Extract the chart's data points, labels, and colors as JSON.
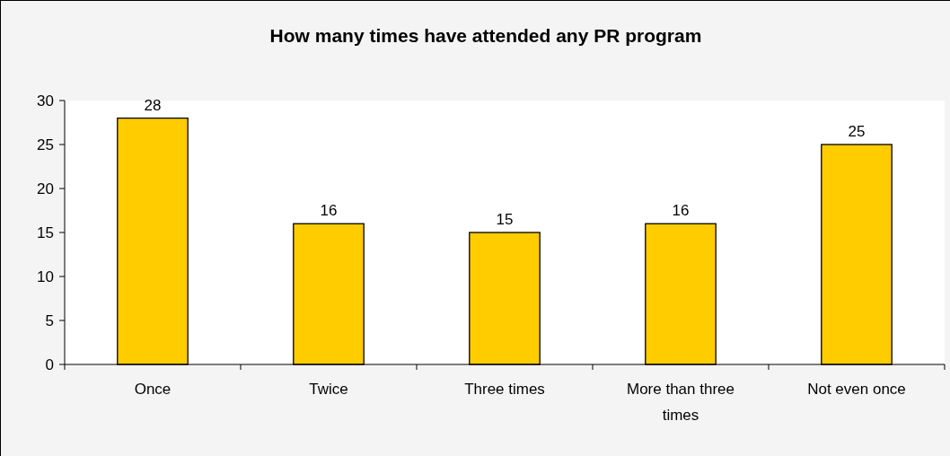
{
  "chart_data": {
    "type": "bar",
    "title": "How many times have attended any PR program",
    "categories": [
      "Once",
      "Twice",
      "Three times",
      "More than three times",
      "Not even once"
    ],
    "values": [
      28,
      16,
      15,
      16,
      25
    ],
    "color": "#ffcc00",
    "ylim": [
      0,
      30
    ],
    "yticks": [
      0,
      5,
      10,
      15,
      20,
      25,
      30
    ],
    "grid": false,
    "data_labels": true
  }
}
